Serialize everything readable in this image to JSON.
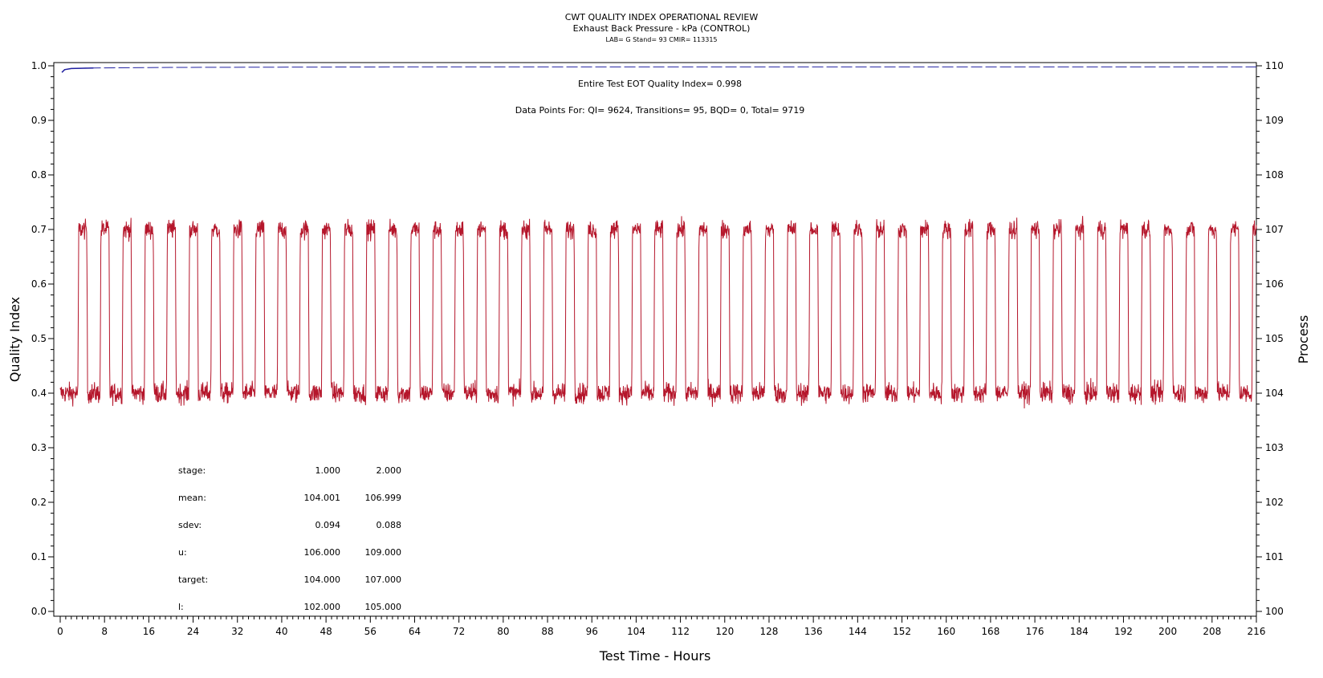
{
  "chart_data": {
    "type": "line",
    "title": "CWT QUALITY INDEX OPERATIONAL REVIEW",
    "subtitle": "Exhaust Back Pressure - kPa (CONTROL)",
    "subsubtitle": "LAB= G Stand= 93 CMIR= 113315",
    "xlabel": "Test Time - Hours",
    "ylabel_left": "Quality Index",
    "ylabel_right": "Process",
    "xlim": [
      0,
      216
    ],
    "ylim_left": [
      0,
      1
    ],
    "ylim_right": [
      100,
      110
    ],
    "x_ticks": [
      "0",
      "8",
      "16",
      "24",
      "32",
      "40",
      "48",
      "56",
      "64",
      "72",
      "80",
      "88",
      "96",
      "104",
      "112",
      "120",
      "128",
      "136",
      "144",
      "152",
      "160",
      "168",
      "176",
      "184",
      "192",
      "200",
      "208",
      "216"
    ],
    "y_ticks_left": [
      "0.0",
      "0.1",
      "0.2",
      "0.3",
      "0.4",
      "0.5",
      "0.6",
      "0.7",
      "0.8",
      "0.9",
      "1.0"
    ],
    "y_ticks_right": [
      "100",
      "101",
      "102",
      "103",
      "104",
      "105",
      "106",
      "107",
      "108",
      "109",
      "110"
    ],
    "annotations": {
      "quality_index": "Entire Test EOT Quality Index=  0.998",
      "data_points": "Data Points For: QI=  9624, Transitions=    95, BQD=     0, Total=  9719"
    },
    "stats_table": {
      "rows": [
        {
          "label": "stage:",
          "v1": "1.000",
          "v2": "2.000"
        },
        {
          "label": "mean:",
          "v1": "104.001",
          "v2": "106.999"
        },
        {
          "label": "sdev:",
          "v1": "0.094",
          "v2": "0.088"
        },
        {
          "label": "u:",
          "v1": "106.000",
          "v2": "109.000"
        },
        {
          "label": "target:",
          "v1": "104.000",
          "v2": "107.000"
        },
        {
          "label": "l:",
          "v1": "102.000",
          "v2": "105.000"
        }
      ]
    },
    "series": [
      {
        "axis": "right",
        "color": "#b5162b",
        "cycle_hours": 4,
        "first_high_start_hours": 3.2,
        "high_duration_hours": 1.6,
        "levels": [
          104.0,
          107.0
        ],
        "noise_sdev": [
          0.094,
          0.088
        ]
      },
      {
        "axis": "left",
        "color": "#2020a0",
        "values": [
          [
            0.3,
            0.988
          ],
          [
            0.8,
            0.993
          ],
          [
            2,
            0.995
          ],
          [
            6,
            0.996
          ],
          [
            20,
            0.997
          ],
          [
            60,
            0.998
          ],
          [
            216,
            0.998
          ]
        ]
      }
    ]
  }
}
